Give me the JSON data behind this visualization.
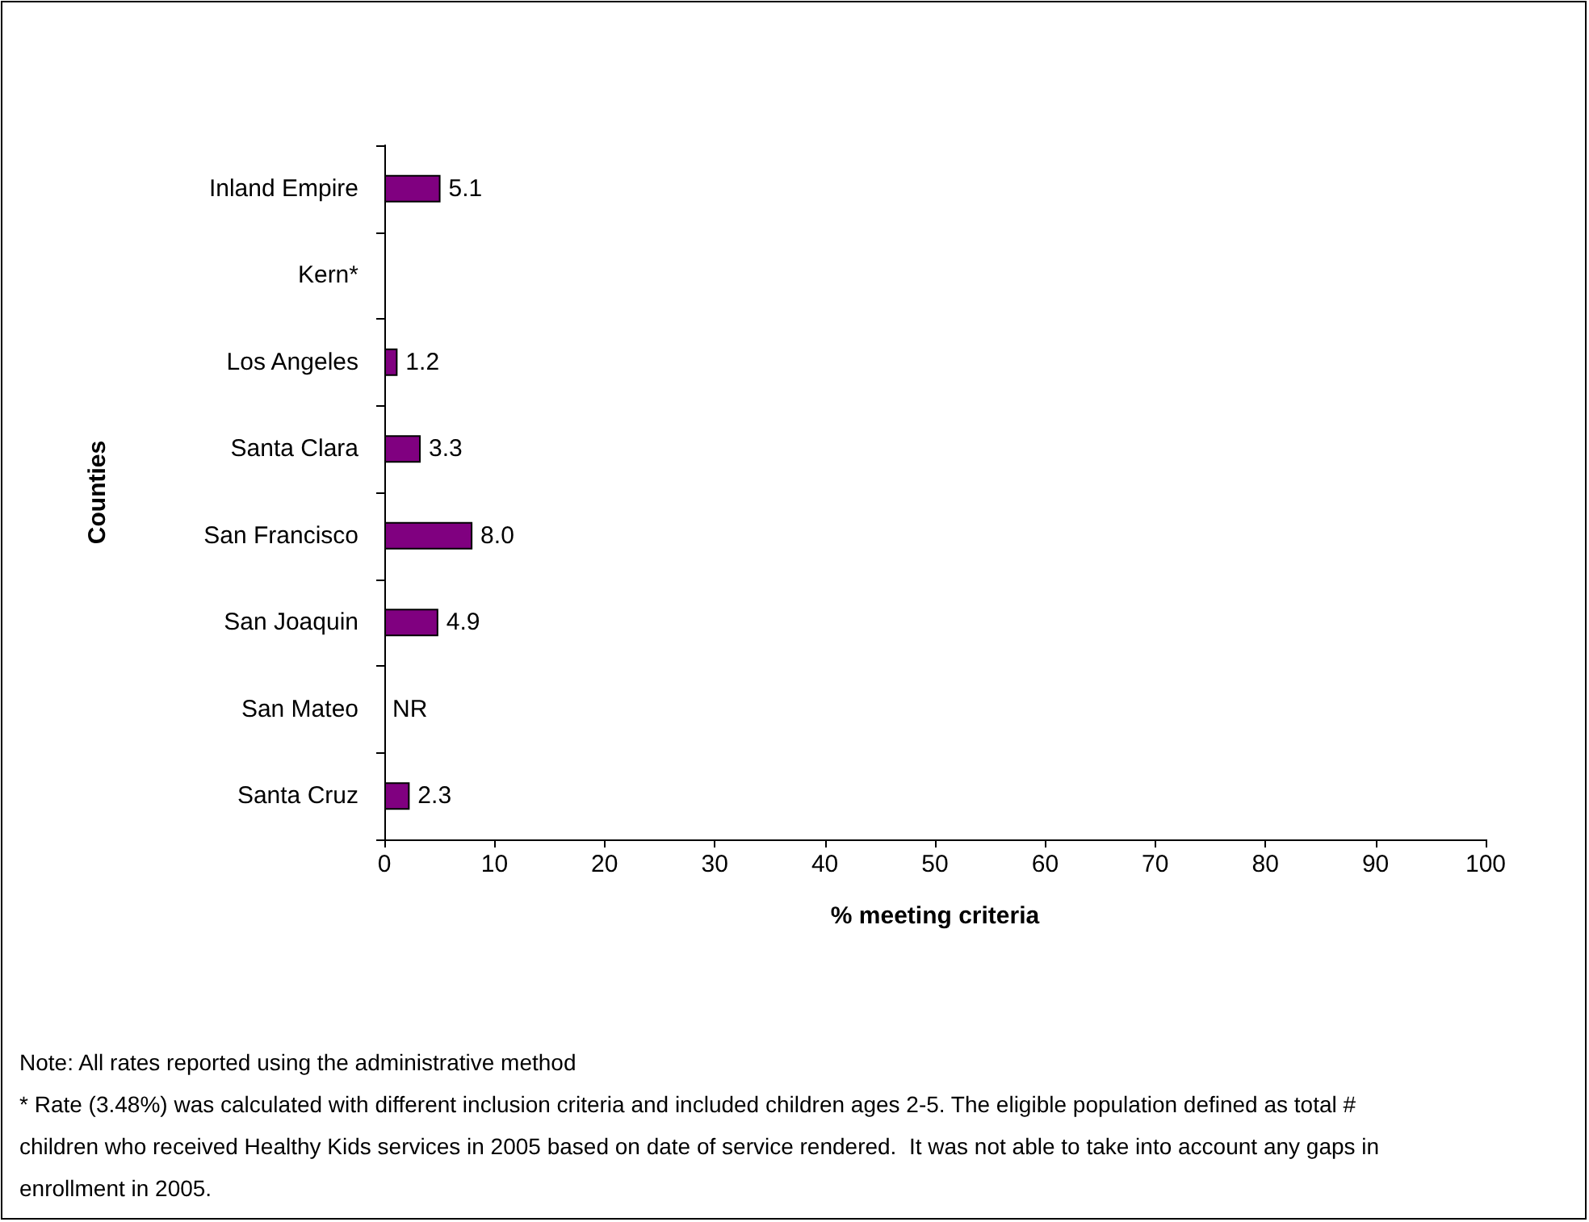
{
  "chart_data": {
    "type": "bar",
    "orientation": "horizontal",
    "categories": [
      "Inland Empire",
      "Kern*",
      "Los Angeles",
      "Santa Clara",
      "San Francisco",
      "San Joaquin",
      "San Mateo",
      "Santa Cruz"
    ],
    "values": [
      5.1,
      null,
      1.2,
      3.3,
      8.0,
      4.9,
      null,
      2.3
    ],
    "value_labels": [
      "5.1",
      null,
      "1.2",
      "3.3",
      "8.0",
      "4.9",
      "NR",
      "2.3"
    ],
    "color": "#800080",
    "xlim": [
      0,
      100
    ],
    "xticks": [
      0,
      10,
      20,
      30,
      40,
      50,
      60,
      70,
      80,
      90,
      100
    ],
    "xlabel": "% meeting criteria",
    "ylabel": "Counties",
    "grid": false,
    "annotations": [
      "Note: All rates reported using the administrative method",
      "* Rate (3.48%) was calculated with different inclusion criteria and included children ages 2-5. The eligible population defined as total # children who received Healthy Kids services in 2005 based on date of service rendered.  It was not able to take into account any gaps in enrollment in 2005."
    ]
  }
}
